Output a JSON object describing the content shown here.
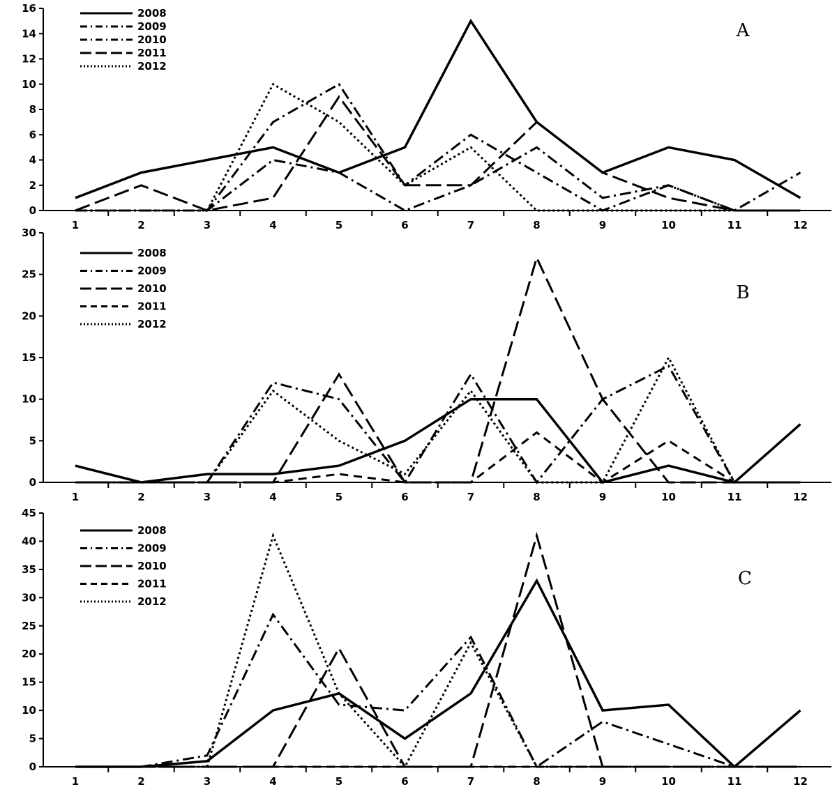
{
  "chart_data": [
    {
      "type": "line",
      "panel_label": "A",
      "categories": [
        "1",
        "2",
        "3",
        "4",
        "5",
        "6",
        "7",
        "8",
        "9",
        "10",
        "11",
        "12"
      ],
      "ylim": [
        0,
        16
      ],
      "yticks": [
        "0",
        "2",
        "4",
        "6",
        "8",
        "10",
        "12",
        "14",
        "16"
      ],
      "grid": false,
      "legend_position": "top-left",
      "series": [
        {
          "name": "2008",
          "style": "solid",
          "values": [
            1,
            3,
            4,
            5,
            3,
            5,
            15,
            7,
            3,
            5,
            4,
            1
          ]
        },
        {
          "name": "2009",
          "style": "dashdot",
          "values": [
            0,
            0,
            0,
            7,
            10,
            2,
            6,
            3,
            0,
            2,
            0,
            3
          ]
        },
        {
          "name": "2010",
          "style": "dashdot",
          "values": [
            0,
            0,
            0,
            4,
            3,
            0,
            2,
            5,
            1,
            2,
            0,
            0
          ]
        },
        {
          "name": "2011",
          "style": "longdash",
          "values": [
            0,
            2,
            0,
            1,
            9,
            2,
            2,
            7,
            3,
            1,
            0,
            0
          ]
        },
        {
          "name": "2012",
          "style": "dotted",
          "values": [
            0,
            0,
            0,
            10,
            7,
            2,
            5,
            0,
            0,
            0,
            0,
            0
          ]
        }
      ]
    },
    {
      "type": "line",
      "panel_label": "B",
      "categories": [
        "1",
        "2",
        "3",
        "4",
        "5",
        "6",
        "7",
        "8",
        "9",
        "10",
        "11",
        "12"
      ],
      "ylim": [
        0,
        30
      ],
      "yticks": [
        "0",
        "5",
        "10",
        "15",
        "20",
        "25",
        "30"
      ],
      "grid": false,
      "legend_position": "top-left",
      "series": [
        {
          "name": "2008",
          "style": "solid",
          "values": [
            2,
            0,
            1,
            1,
            2,
            5,
            10,
            10,
            0,
            2,
            0,
            7
          ]
        },
        {
          "name": "2009",
          "style": "dashdot",
          "values": [
            0,
            0,
            0,
            12,
            10,
            0,
            13,
            0,
            10,
            14,
            0,
            0
          ]
        },
        {
          "name": "2010",
          "style": "longdash",
          "values": [
            0,
            0,
            0,
            0,
            13,
            0,
            0,
            27,
            10,
            0,
            0,
            0
          ]
        },
        {
          "name": "2011",
          "style": "dash",
          "values": [
            0,
            0,
            0,
            0,
            1,
            0,
            0,
            6,
            0,
            5,
            0,
            0
          ]
        },
        {
          "name": "2012",
          "style": "dotted",
          "values": [
            0,
            0,
            0,
            11,
            5,
            1,
            11,
            0,
            0,
            15,
            0,
            0
          ]
        }
      ]
    },
    {
      "type": "line",
      "panel_label": "C",
      "categories": [
        "1",
        "2",
        "3",
        "4",
        "5",
        "6",
        "7",
        "8",
        "9",
        "10",
        "11",
        "12"
      ],
      "ylim": [
        0,
        45
      ],
      "yticks": [
        "0",
        "5",
        "10",
        "15",
        "20",
        "25",
        "30",
        "35",
        "40",
        "45"
      ],
      "grid": false,
      "legend_position": "top-left",
      "series": [
        {
          "name": "2008",
          "style": "solid",
          "values": [
            0,
            0,
            1,
            10,
            13,
            5,
            13,
            33,
            10,
            11,
            0,
            10
          ]
        },
        {
          "name": "2009",
          "style": "dashdot",
          "values": [
            0,
            0,
            2,
            27,
            11,
            10,
            23,
            0,
            8,
            4,
            0,
            0
          ]
        },
        {
          "name": "2010",
          "style": "longdash",
          "values": [
            0,
            0,
            0,
            0,
            21,
            0,
            0,
            41,
            0,
            0,
            0,
            0
          ]
        },
        {
          "name": "2011",
          "style": "dash",
          "values": [
            0,
            0,
            0,
            0,
            0,
            0,
            0,
            0,
            0,
            0,
            0,
            0
          ]
        },
        {
          "name": "2012",
          "style": "dotted",
          "values": [
            0,
            0,
            0,
            41,
            13,
            0,
            22,
            0,
            0,
            0,
            0,
            0
          ]
        }
      ]
    }
  ]
}
